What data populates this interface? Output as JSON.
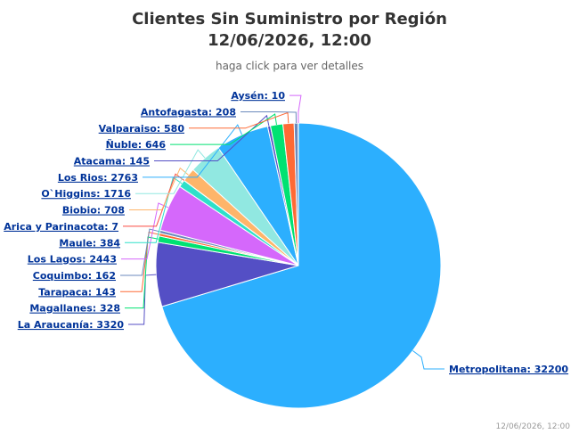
{
  "chart_data": {
    "type": "pie",
    "title": [
      "Clientes Sin Suministro por Región",
      "12/06/2026, 12:00"
    ],
    "subtitle": "haga click para ver detalles",
    "credits": "12/06/2026, 12:00",
    "values": [
      32200,
      3320,
      328,
      143,
      162,
      2443,
      384,
      7,
      708,
      1716,
      2763,
      145,
      646,
      580,
      208,
      10
    ],
    "value_labels": [
      "Metropolitana: 32200",
      "La Araucanía: 3320",
      "Magallanes: 328",
      "Tarapaca: 143",
      "Coquimbo: 162",
      "Los Lagos: 2443",
      "Maule: 384",
      "Arica y Parinacota: 7",
      "Biobio: 708",
      "O`Higgins: 1716",
      "Los Rios: 2763",
      "Atacama: 145",
      "Ñuble: 646",
      "Valparaiso: 580",
      "Antofagasta: 208",
      "Aysén: 10"
    ],
    "colors": [
      "#2caffe",
      "#544fc5",
      "#00e272",
      "#fe6a35",
      "#6b8abc",
      "#d568fb",
      "#2ee0ca",
      "#fa4b42",
      "#feb56a",
      "#91e8e1",
      "#2caffe",
      "#544fc5",
      "#00e272",
      "#fe6a35",
      "#6b8abc",
      "#d568fb"
    ]
  }
}
